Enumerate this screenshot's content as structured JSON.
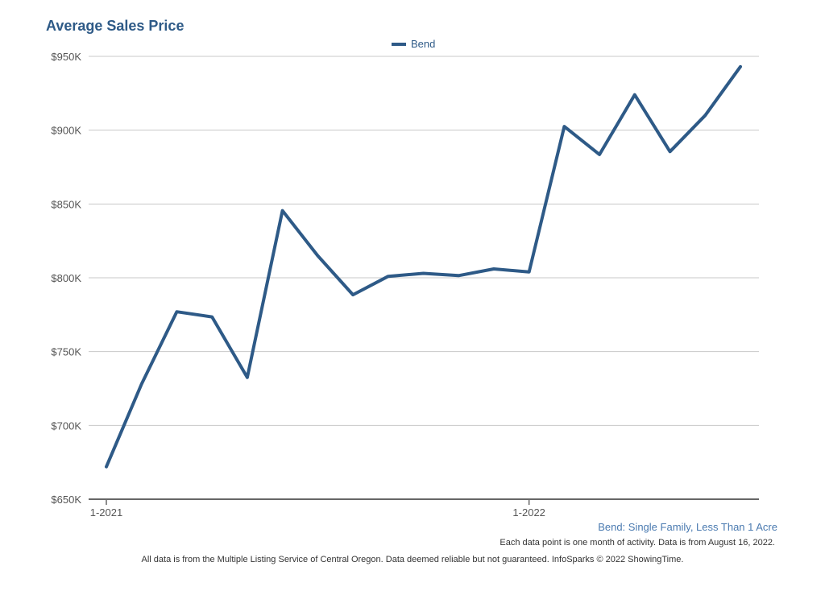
{
  "chart_data": {
    "type": "line",
    "title": "Average Sales Price",
    "series": [
      {
        "name": "Bend",
        "color": "#2e5a87",
        "values": [
          672000,
          728000,
          777000,
          773500,
          732500,
          845500,
          815000,
          788500,
          801000,
          803000,
          801500,
          806000,
          804000,
          902500,
          883500,
          924000,
          885500,
          910000,
          943000
        ]
      }
    ],
    "x_tick_labels": [
      {
        "index": 0,
        "label": "1-2021"
      },
      {
        "index": 12,
        "label": "1-2022"
      }
    ],
    "ylim": [
      650000,
      950000
    ],
    "y_ticks": [
      {
        "value": 650000,
        "label": "$650K"
      },
      {
        "value": 700000,
        "label": "$700K"
      },
      {
        "value": 750000,
        "label": "$750K"
      },
      {
        "value": 800000,
        "label": "$800K"
      },
      {
        "value": 850000,
        "label": "$850K"
      },
      {
        "value": 900000,
        "label": "$900K"
      },
      {
        "value": 950000,
        "label": "$950K"
      }
    ],
    "grid": true,
    "legend_position": "top-center",
    "subtitle": "Bend: Single Family, Less Than 1 Acre",
    "note": "Each data point is one month of activity. Data is from August 16, 2022.",
    "source": "All data is from the Multiple Listing Service of Central Oregon. Data deemed reliable but not guaranteed. InfoSparks © 2022 ShowingTime."
  }
}
